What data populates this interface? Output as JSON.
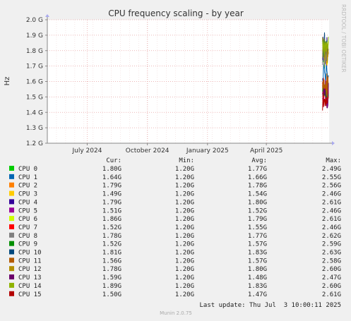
{
  "chart_data": {
    "type": "line",
    "title": "CPU frequency scaling - by year",
    "ylabel": "Hz",
    "side_label": "RRDTOOL / TOBI OETIKER",
    "ylim": [
      1.2,
      2.0
    ],
    "y_ticks": [
      {
        "value": 2.0,
        "label": "2.0 G"
      },
      {
        "value": 1.9,
        "label": "1.9 G"
      },
      {
        "value": 1.8,
        "label": "1.8 G"
      },
      {
        "value": 1.7,
        "label": "1.7 G"
      },
      {
        "value": 1.6,
        "label": "1.6 G"
      },
      {
        "value": 1.5,
        "label": "1.5 G"
      },
      {
        "value": 1.4,
        "label": "1.4 G"
      },
      {
        "value": 1.3,
        "label": "1.3 G"
      },
      {
        "value": 1.2,
        "label": "1.2 G"
      }
    ],
    "x_range": [
      "2024-05-01",
      "2025-07-06"
    ],
    "x_ticks": [
      {
        "date": "2024-07-01",
        "label": "July 2024"
      },
      {
        "date": "2024-10-01",
        "label": "October 2024"
      },
      {
        "date": "2025-01-01",
        "label": "January 2025"
      },
      {
        "date": "2025-04-01",
        "label": "April 2025"
      }
    ],
    "activity_start": "2025-06-26",
    "legend_headers": [
      "Cur:",
      "Min:",
      "Avg:",
      "Max:"
    ],
    "series": [
      {
        "name": "CPU 0",
        "color": "#00cc00",
        "cur": "1.80G",
        "min": "1.20G",
        "avg": "1.77G",
        "max": "2.49G"
      },
      {
        "name": "CPU 1",
        "color": "#0066b3",
        "cur": "1.64G",
        "min": "1.20G",
        "avg": "1.66G",
        "max": "2.55G"
      },
      {
        "name": "CPU 2",
        "color": "#ff8000",
        "cur": "1.79G",
        "min": "1.20G",
        "avg": "1.78G",
        "max": "2.56G"
      },
      {
        "name": "CPU 3",
        "color": "#ffcc00",
        "cur": "1.49G",
        "min": "1.20G",
        "avg": "1.54G",
        "max": "2.46G"
      },
      {
        "name": "CPU 4",
        "color": "#330099",
        "cur": "1.79G",
        "min": "1.20G",
        "avg": "1.80G",
        "max": "2.61G"
      },
      {
        "name": "CPU 5",
        "color": "#990099",
        "cur": "1.51G",
        "min": "1.20G",
        "avg": "1.52G",
        "max": "2.46G"
      },
      {
        "name": "CPU 6",
        "color": "#ccff00",
        "cur": "1.86G",
        "min": "1.20G",
        "avg": "1.79G",
        "max": "2.61G"
      },
      {
        "name": "CPU 7",
        "color": "#ff0000",
        "cur": "1.52G",
        "min": "1.20G",
        "avg": "1.55G",
        "max": "2.46G"
      },
      {
        "name": "CPU 8",
        "color": "#808080",
        "cur": "1.78G",
        "min": "1.20G",
        "avg": "1.77G",
        "max": "2.62G"
      },
      {
        "name": "CPU 9",
        "color": "#008f00",
        "cur": "1.52G",
        "min": "1.20G",
        "avg": "1.57G",
        "max": "2.59G"
      },
      {
        "name": "CPU 10",
        "color": "#00487d",
        "cur": "1.81G",
        "min": "1.20G",
        "avg": "1.83G",
        "max": "2.63G"
      },
      {
        "name": "CPU 11",
        "color": "#b35a00",
        "cur": "1.56G",
        "min": "1.20G",
        "avg": "1.57G",
        "max": "2.58G"
      },
      {
        "name": "CPU 12",
        "color": "#b38f00",
        "cur": "1.78G",
        "min": "1.20G",
        "avg": "1.80G",
        "max": "2.60G"
      },
      {
        "name": "CPU 13",
        "color": "#6b006b",
        "cur": "1.59G",
        "min": "1.20G",
        "avg": "1.48G",
        "max": "2.47G"
      },
      {
        "name": "CPU 14",
        "color": "#8fb300",
        "cur": "1.89G",
        "min": "1.20G",
        "avg": "1.83G",
        "max": "2.60G"
      },
      {
        "name": "CPU 15",
        "color": "#b30000",
        "cur": "1.50G",
        "min": "1.20G",
        "avg": "1.47G",
        "max": "2.61G"
      }
    ],
    "last_update": "Last update: Thu Jul  3 10:00:11 2025",
    "footer": "Munin 2.0.75"
  }
}
